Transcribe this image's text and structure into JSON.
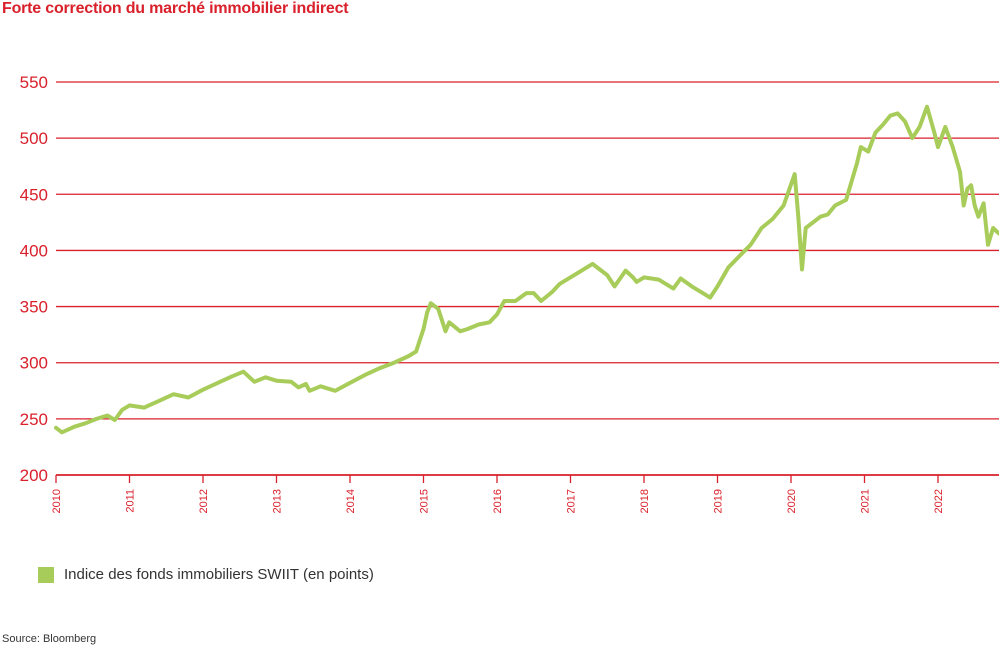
{
  "title": "Forte correction du marché immobilier indirect",
  "source": "Source: Bloomberg",
  "colors": {
    "accent": "#d9202b",
    "series": "#a8cc5a",
    "text": "#333333"
  },
  "chart_data": {
    "type": "line",
    "title": "Forte correction du marché immobilier indirect",
    "ylim": [
      200,
      550
    ],
    "yticks": [
      "200",
      "250",
      "300",
      "350",
      "400",
      "450",
      "500",
      "550"
    ],
    "xticks": [
      "2010",
      "2011",
      "2012",
      "2013",
      "2014",
      "2015",
      "2016",
      "2017",
      "2018",
      "2019",
      "2020",
      "2021",
      "2022"
    ],
    "xlim": [
      2010.0,
      2022.83
    ],
    "grid": "horizontal",
    "legend_position": "bottom-left",
    "series": [
      {
        "name": "Indice des fonds immobiliers SWIIT (en points)",
        "color": "#a8cc5a",
        "x": [
          2010.0,
          2010.08,
          2010.15,
          2010.25,
          2010.4,
          2010.55,
          2010.7,
          2010.8,
          2010.9,
          2011.0,
          2011.2,
          2011.4,
          2011.6,
          2011.8,
          2012.0,
          2012.2,
          2012.4,
          2012.55,
          2012.7,
          2012.85,
          2013.0,
          2013.2,
          2013.3,
          2013.4,
          2013.45,
          2013.6,
          2013.8,
          2014.0,
          2014.2,
          2014.4,
          2014.6,
          2014.8,
          2014.9,
          2015.0,
          2015.05,
          2015.1,
          2015.2,
          2015.3,
          2015.35,
          2015.5,
          2015.6,
          2015.75,
          2015.9,
          2016.0,
          2016.1,
          2016.25,
          2016.4,
          2016.5,
          2016.6,
          2016.75,
          2016.85,
          2016.95,
          2017.1,
          2017.3,
          2017.5,
          2017.6,
          2017.75,
          2017.85,
          2017.9,
          2018.0,
          2018.2,
          2018.4,
          2018.5,
          2018.65,
          2018.8,
          2018.9,
          2019.0,
          2019.15,
          2019.3,
          2019.45,
          2019.6,
          2019.75,
          2019.9,
          2020.05,
          2020.1,
          2020.15,
          2020.2,
          2020.3,
          2020.4,
          2020.5,
          2020.6,
          2020.75,
          2020.9,
          2020.95,
          2021.05,
          2021.15,
          2021.25,
          2021.35,
          2021.45,
          2021.55,
          2021.65,
          2021.75,
          2021.85,
          2021.95,
          2022.0,
          2022.1,
          2022.2,
          2022.3,
          2022.35,
          2022.4,
          2022.45,
          2022.5,
          2022.55,
          2022.62,
          2022.68,
          2022.75,
          2022.83
        ],
        "values": [
          242,
          238,
          240,
          243,
          246,
          250,
          253,
          249,
          258,
          262,
          260,
          266,
          272,
          269,
          276,
          282,
          288,
          292,
          283,
          287,
          284,
          283,
          278,
          281,
          275,
          279,
          275,
          282,
          289,
          295,
          300,
          306,
          310,
          330,
          345,
          353,
          348,
          328,
          336,
          328,
          330,
          334,
          336,
          343,
          355,
          355,
          362,
          362,
          355,
          363,
          370,
          374,
          380,
          388,
          378,
          368,
          382,
          376,
          372,
          376,
          374,
          366,
          375,
          368,
          362,
          358,
          368,
          385,
          395,
          405,
          420,
          428,
          440,
          468,
          430,
          383,
          420,
          425,
          430,
          432,
          440,
          445,
          478,
          492,
          488,
          505,
          512,
          520,
          522,
          515,
          500,
          510,
          528,
          505,
          492,
          510,
          492,
          470,
          440,
          455,
          458,
          440,
          430,
          442,
          405,
          420,
          415
        ]
      }
    ]
  }
}
